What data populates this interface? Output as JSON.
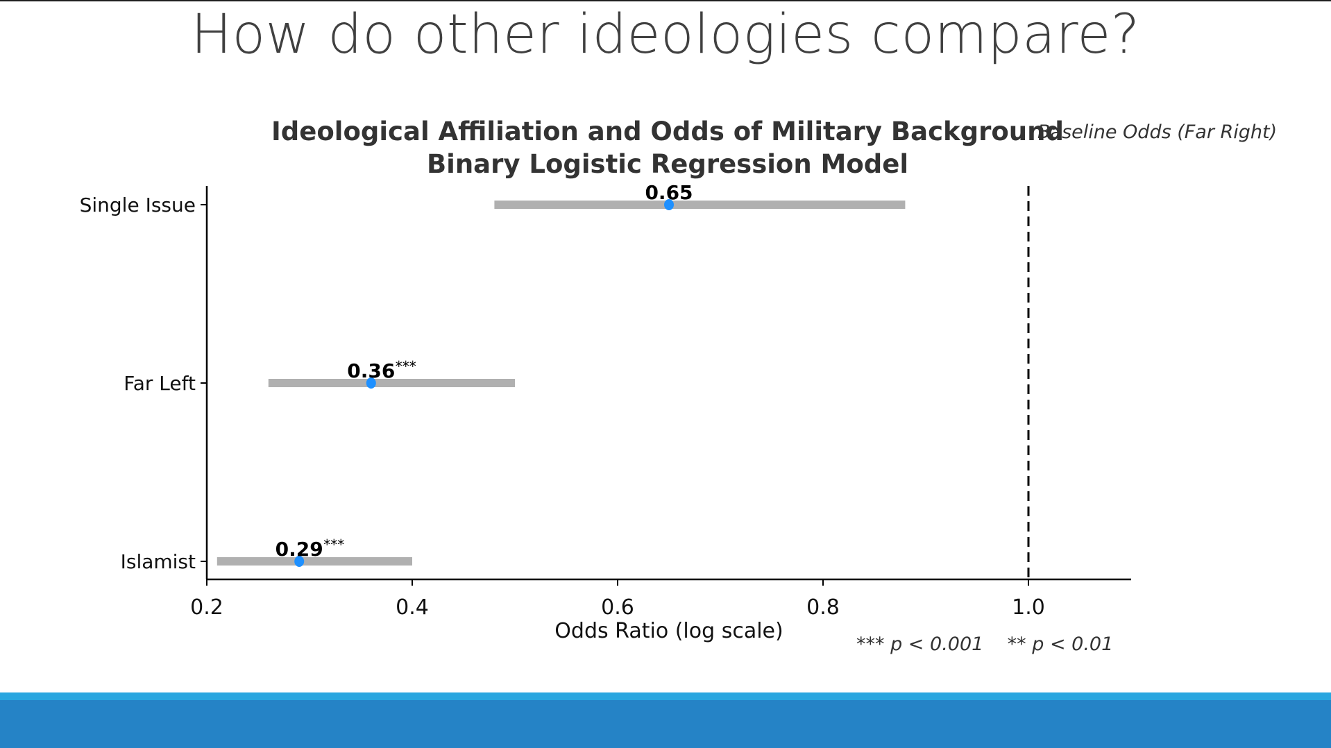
{
  "slide": {
    "title": "How do other ideologies compare?"
  },
  "colors": {
    "point": "#1e90ff",
    "ci_bar": "#b0b0b0",
    "footer_stripe": "#29a6e0",
    "footer_band": "#2583c6"
  },
  "chart_data": {
    "type": "forest",
    "title": "Ideological Affiliation and Odds of Military Background",
    "subtitle": "Binary Logistic Regression Model",
    "xlabel": "Odds Ratio (log scale)",
    "ylabel": "",
    "x_ticks": [
      "0.2",
      "0.4",
      "0.6",
      "0.8",
      "1.0"
    ],
    "xlim": [
      0.2,
      1.1
    ],
    "reference": {
      "value": 1.0,
      "label": "Baseline Odds (Far Right)",
      "style": "dashed"
    },
    "categories": [
      "Single Issue",
      "Far Left",
      "Islamist"
    ],
    "series": [
      {
        "points": [
          {
            "category": "Single Issue",
            "value": 0.65,
            "ci_low": 0.48,
            "ci_high": 0.88,
            "label": "0.65",
            "stars": ""
          },
          {
            "category": "Far Left",
            "value": 0.36,
            "ci_low": 0.26,
            "ci_high": 0.5,
            "label": "0.36",
            "stars": "***"
          },
          {
            "category": "Islamist",
            "value": 0.29,
            "ci_low": 0.21,
            "ci_high": 0.4,
            "label": "0.29",
            "stars": "***"
          }
        ]
      }
    ],
    "significance_note": "*** p < 0.001    ** p < 0.01",
    "grid": false,
    "legend": "none"
  }
}
